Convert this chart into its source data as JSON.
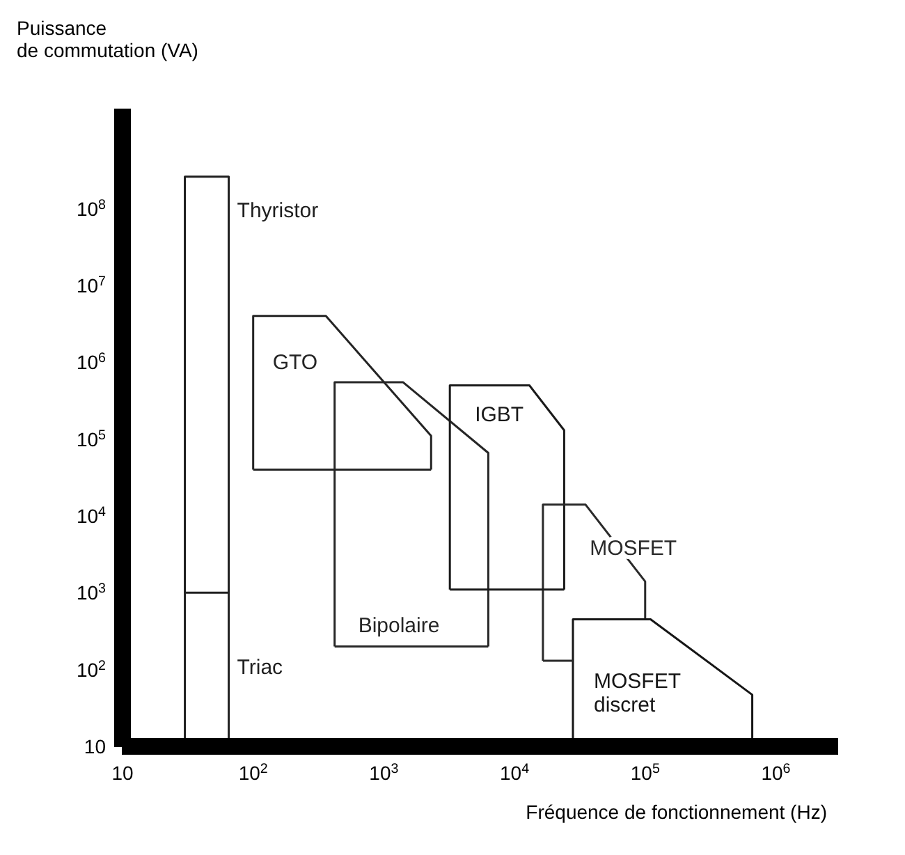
{
  "chart_data": {
    "type": "line",
    "xlabel": "Fréquence de fonctionnement (Hz)",
    "ylabel": "Puissance\nde commutation (VA)",
    "log": "xy",
    "marker": "none",
    "line_style": "solid",
    "xlim": [
      10,
      3000000
    ],
    "ylim": [
      10,
      2000000000
    ],
    "xticks": [
      {
        "value": 10,
        "label": "10"
      },
      {
        "value": 100,
        "label": "10$^{2}$"
      },
      {
        "value": 1000,
        "label": "10$^{3}$"
      },
      {
        "value": 10000,
        "label": "10$^{4}$"
      },
      {
        "value": 100000,
        "label": "10$^{5}$"
      },
      {
        "value": 1000000,
        "label": "10$^{6}$"
      }
    ],
    "yticks": [
      {
        "value": 10,
        "label": "10"
      },
      {
        "value": 100,
        "label": "10$^{2}$"
      },
      {
        "value": 1000,
        "label": "10$^{3}$"
      },
      {
        "value": 10000,
        "label": "10$^{4}$"
      },
      {
        "value": 100000,
        "label": "10$^{5}$"
      },
      {
        "value": 1000000,
        "label": "10$^{6}$"
      },
      {
        "value": 10000000,
        "label": "10$^{7}$"
      },
      {
        "value": 100000000,
        "label": "10$^{8}$"
      }
    ],
    "series": [
      {
        "name": "Bipolaire",
        "color": "#262626",
        "x": [
          420,
          420,
          1400,
          6300,
          6300
        ],
        "values": [
          200,
          550000,
          550000,
          66000,
          200
        ]
      },
      {
        "name": "IGBT",
        "color": "#1a1a1a",
        "x": [
          3200,
          3200,
          13000,
          24000,
          24000
        ],
        "values": [
          1100,
          500000,
          500000,
          130000,
          1100
        ]
      },
      {
        "name": "MOSFET",
        "color": "#2a2a2a",
        "x": [
          16500,
          16500,
          35000,
          100000,
          100000
        ],
        "values": [
          130,
          14000,
          14000,
          1400,
          450
        ]
      },
      {
        "name": "MOSFET discret",
        "color": "#161616",
        "x": [
          28000,
          28000,
          110000,
          660000,
          660000
        ],
        "values": [
          10,
          450,
          450,
          47,
          10
        ]
      },
      {
        "name": "Thyristor",
        "color": "#1e1e1e",
        "x": [
          30,
          30,
          65,
          65
        ],
        "values": [
          1000,
          260000000,
          260000000,
          1000
        ]
      },
      {
        "name": "Triac",
        "color": "#202020",
        "x": [
          30,
          30,
          65,
          65
        ],
        "values": [
          10,
          1000,
          1000,
          10
        ]
      },
      {
        "name": "GTO",
        "color": "#242424",
        "x": [
          100,
          100,
          360,
          2300,
          2300
        ],
        "values": [
          40000,
          4000000,
          4000000,
          110000,
          40000
        ]
      },
      {
        "color": "#242424",
        "x": [
          100,
          2300
        ],
        "values": [
          40000,
          40000
        ]
      },
      {
        "color": "#262626",
        "x": [
          420,
          6300
        ],
        "values": [
          200,
          200
        ]
      },
      {
        "color": "#1a1a1a",
        "x": [
          3200,
          24000
        ],
        "values": [
          1100,
          1100
        ]
      },
      {
        "color": "#2a2a2a",
        "x": [
          16500,
          28000
        ],
        "values": [
          130,
          130
        ]
      }
    ]
  }
}
